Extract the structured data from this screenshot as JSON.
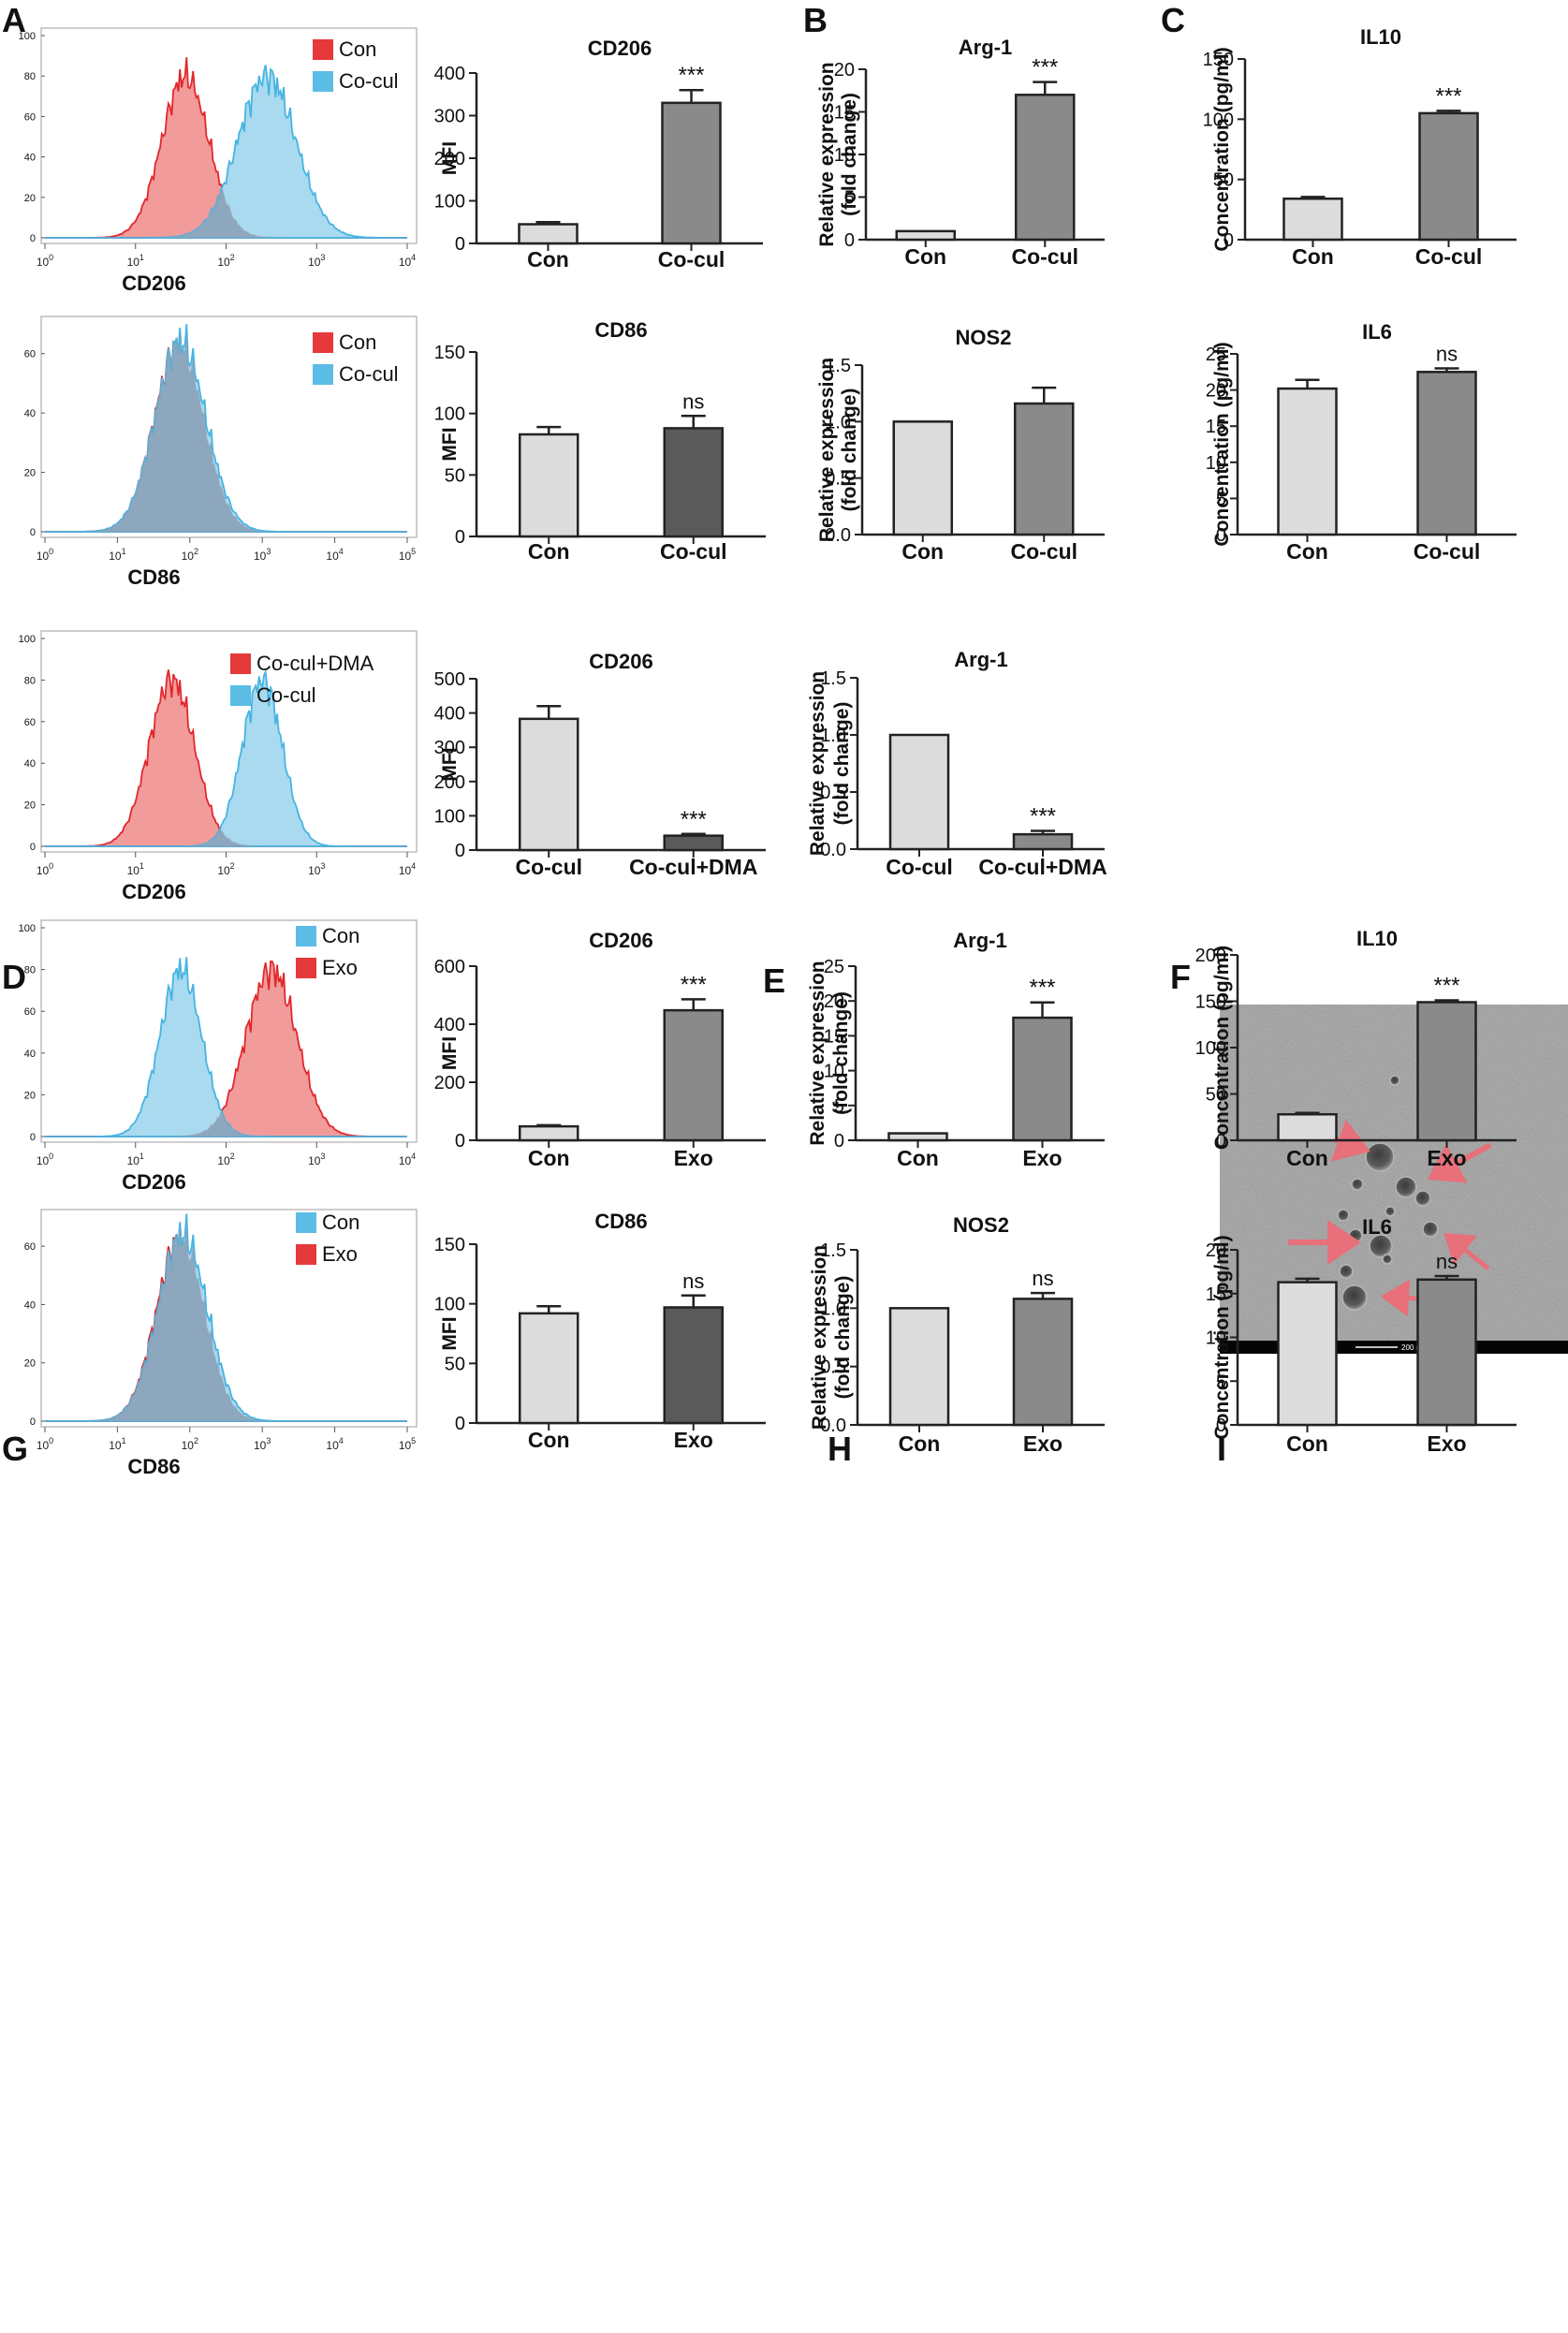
{
  "figure": {
    "panel_labels": [
      "A",
      "B",
      "C",
      "D",
      "E",
      "F",
      "G",
      "H",
      "I"
    ],
    "tem_scale_label": "200 nm",
    "colors": {
      "red_fill": "#F08A8A",
      "red_line": "#E0282C",
      "red_legend": "#E5393B",
      "blue_fill": "#9AD4EC",
      "blue_line": "#46B4E2",
      "blue_legend": "#5BBDE6",
      "overlap": "#8AA3BA",
      "bar_light": "#DCDCDC",
      "bar_mid": "#8A8A8A",
      "bar_dark": "#5A5A5A",
      "arrow": "#E8707A",
      "axis": "#222222"
    }
  },
  "chart_data": [
    {
      "id": "A_hist_cd206",
      "panel": "A",
      "type": "histogram",
      "xlabel": "CD206",
      "xscale": "log",
      "xrange": [
        1,
        10000
      ],
      "x_tick_labels": [
        "10^0",
        "10^1",
        "10^2",
        "10^3",
        "10^4"
      ],
      "ylim": [
        0,
        100
      ],
      "y_tick_labels": [
        "0",
        "20",
        "40",
        "60",
        "80",
        "100"
      ],
      "legend": [
        "Con",
        "Co-cul"
      ],
      "series": [
        {
          "name": "Con",
          "color": "red",
          "peak_log10": 1.55,
          "spread": 0.26,
          "height": 80,
          "smooth": 0.6
        },
        {
          "name": "Co-cul",
          "color": "blue",
          "peak_log10": 2.45,
          "spread": 0.32,
          "height": 80,
          "smooth": 0.5
        }
      ]
    },
    {
      "id": "A_bar_cd206",
      "panel": "A",
      "type": "bar",
      "title": "CD206",
      "ylabel": "MFI",
      "ylim": [
        0,
        400
      ],
      "yticks": [
        0,
        100,
        200,
        300,
        400
      ],
      "categories": [
        "Con",
        "Co-cul"
      ],
      "values": [
        45,
        330
      ],
      "errors": [
        5,
        30
      ],
      "annotations": [
        "",
        "***"
      ],
      "bar_colors": [
        "light",
        "mid"
      ]
    },
    {
      "id": "B_bar_arg1",
      "panel": "B",
      "type": "bar",
      "title": "Arg-1",
      "ylabel": "Relative expression (fold change)",
      "ylim": [
        0,
        20
      ],
      "yticks": [
        0,
        5,
        10,
        15,
        20
      ],
      "categories": [
        "Con",
        "Co-cul"
      ],
      "values": [
        1,
        17
      ],
      "errors": [
        0,
        1.5
      ],
      "annotations": [
        "",
        "***"
      ],
      "bar_colors": [
        "light",
        "mid"
      ]
    },
    {
      "id": "C_bar_il10",
      "panel": "C",
      "type": "bar",
      "title": "IL10",
      "ylabel": "Concentration (pg/ml)",
      "ylim": [
        0,
        150
      ],
      "yticks": [
        0,
        50,
        100,
        150
      ],
      "categories": [
        "Con",
        "Co-cul"
      ],
      "values": [
        34,
        105
      ],
      "errors": [
        1.5,
        2
      ],
      "annotations": [
        "",
        "***"
      ],
      "bar_colors": [
        "light",
        "mid"
      ]
    },
    {
      "id": "A_hist_cd86",
      "panel": "A2",
      "type": "histogram",
      "xlabel": "CD86",
      "xscale": "log",
      "xrange": [
        1,
        100000
      ],
      "x_tick_labels": [
        "10^0",
        "10^1",
        "10^2",
        "10^3",
        "10^4",
        "10^5"
      ],
      "ylim": [
        0,
        70
      ],
      "y_tick_labels": [
        "0",
        "20",
        "40",
        "60"
      ],
      "legend": [
        "Con",
        "Co-cul"
      ],
      "series": [
        {
          "name": "Con",
          "color": "red",
          "peak_log10": 1.85,
          "spread": 0.34,
          "height": 63,
          "smooth": 0.5
        },
        {
          "name": "Co-cul",
          "color": "blue",
          "peak_log10": 1.87,
          "spread": 0.35,
          "height": 64,
          "smooth": 0.5
        }
      ]
    },
    {
      "id": "A_bar_cd86",
      "panel": "A2",
      "type": "bar",
      "title": "CD86",
      "ylabel": "MFI",
      "ylim": [
        0,
        150
      ],
      "yticks": [
        0,
        50,
        100,
        150
      ],
      "categories": [
        "Con",
        "Co-cul"
      ],
      "values": [
        83,
        88
      ],
      "errors": [
        6,
        10
      ],
      "annotations": [
        "",
        "ns"
      ],
      "bar_colors": [
        "light",
        "dark"
      ]
    },
    {
      "id": "B_bar_nos2",
      "panel": "B2",
      "type": "bar",
      "title": "NOS2",
      "ylabel": "Relative expression (fold change)",
      "ylim": [
        0,
        1.5
      ],
      "yticks": [
        0,
        0.5,
        1.0,
        1.5
      ],
      "tick_decimals": 1,
      "categories": [
        "Con",
        "Co-cul"
      ],
      "values": [
        1.0,
        1.16
      ],
      "errors": [
        0,
        0.14
      ],
      "annotations": [
        "",
        ""
      ],
      "bar_colors": [
        "light",
        "mid"
      ]
    },
    {
      "id": "C_bar_il6",
      "panel": "C2",
      "type": "bar",
      "title": "IL6",
      "ylabel": "Concentration (pg/ml)",
      "ylim": [
        0,
        25
      ],
      "yticks": [
        0,
        5,
        10,
        15,
        20,
        25
      ],
      "categories": [
        "Con",
        "Co-cul"
      ],
      "values": [
        20.2,
        22.5
      ],
      "errors": [
        1.2,
        0.5
      ],
      "annotations": [
        "",
        "ns"
      ],
      "bar_colors": [
        "light",
        "mid"
      ]
    },
    {
      "id": "D_hist_cd206",
      "panel": "D",
      "type": "histogram",
      "xlabel": "CD206",
      "xscale": "log",
      "xrange": [
        1,
        10000
      ],
      "x_tick_labels": [
        "10^0",
        "10^1",
        "10^2",
        "10^3",
        "10^4"
      ],
      "ylim": [
        0,
        100
      ],
      "y_tick_labels": [
        "0",
        "20",
        "40",
        "60",
        "80",
        "100"
      ],
      "legend": [
        "Co-cul+DMA",
        "Co-cul"
      ],
      "series": [
        {
          "name": "Co-cul+DMA",
          "color": "red",
          "peak_log10": 1.4,
          "spread": 0.25,
          "height": 80,
          "smooth": 0.6
        },
        {
          "name": "Co-cul",
          "color": "blue",
          "peak_log10": 2.4,
          "spread": 0.22,
          "height": 80,
          "smooth": 0.6
        }
      ]
    },
    {
      "id": "D_bar_cd206",
      "panel": "D",
      "type": "bar",
      "title": "CD206",
      "ylabel": "MFI",
      "ylim": [
        0,
        500
      ],
      "yticks": [
        0,
        100,
        200,
        300,
        400,
        500
      ],
      "categories": [
        "Co-cul",
        "Co-cul+DMA"
      ],
      "values": [
        383,
        42
      ],
      "errors": [
        37,
        5
      ],
      "annotations": [
        "",
        "***"
      ],
      "bar_colors": [
        "light",
        "dark"
      ]
    },
    {
      "id": "E_bar_arg1",
      "panel": "E",
      "type": "bar",
      "title": "Arg-1",
      "ylabel": "Relative expression (fold change)",
      "ylim": [
        0,
        1.5
      ],
      "yticks": [
        0,
        0.5,
        1.0,
        1.5
      ],
      "tick_decimals": 1,
      "categories": [
        "Co-cul",
        "Co-cul+DMA"
      ],
      "values": [
        1.0,
        0.13
      ],
      "errors": [
        0,
        0.03
      ],
      "annotations": [
        "",
        "***"
      ],
      "bar_colors": [
        "light",
        "mid"
      ]
    },
    {
      "id": "G_hist_cd206",
      "panel": "G",
      "type": "histogram",
      "xlabel": "CD206",
      "xscale": "log",
      "xrange": [
        1,
        10000
      ],
      "x_tick_labels": [
        "10^0",
        "10^1",
        "10^2",
        "10^3",
        "10^4"
      ],
      "ylim": [
        0,
        100
      ],
      "y_tick_labels": [
        "0",
        "20",
        "40",
        "60",
        "80",
        "100"
      ],
      "legend": [
        "Con",
        "Exo"
      ],
      "series": [
        {
          "name": "Exo",
          "color": "red",
          "peak_log10": 2.5,
          "spread": 0.28,
          "height": 80,
          "smooth": 0.5
        },
        {
          "name": "Con",
          "color": "blue",
          "peak_log10": 1.5,
          "spread": 0.23,
          "height": 80,
          "smooth": 0.6
        }
      ]
    },
    {
      "id": "G_bar_cd206",
      "panel": "G",
      "type": "bar",
      "title": "CD206",
      "ylabel": "MFI",
      "ylim": [
        0,
        600
      ],
      "yticks": [
        0,
        200,
        400,
        600
      ],
      "categories": [
        "Con",
        "Exo"
      ],
      "values": [
        48,
        448
      ],
      "errors": [
        4,
        38
      ],
      "annotations": [
        "",
        "***"
      ],
      "bar_colors": [
        "light",
        "mid"
      ]
    },
    {
      "id": "H_bar_arg1",
      "panel": "H",
      "type": "bar",
      "title": "Arg-1",
      "ylabel": "Relative expression (fold change)",
      "ylim": [
        0,
        25
      ],
      "yticks": [
        0,
        5,
        10,
        15,
        20,
        25
      ],
      "categories": [
        "Con",
        "Exo"
      ],
      "values": [
        1,
        17.6
      ],
      "errors": [
        0,
        2.2
      ],
      "annotations": [
        "",
        "***"
      ],
      "bar_colors": [
        "light",
        "mid"
      ]
    },
    {
      "id": "I_bar_il10",
      "panel": "I",
      "type": "bar",
      "title": "IL10",
      "ylabel": "Concentration (pg/ml)",
      "ylim": [
        0,
        200
      ],
      "yticks": [
        0,
        50,
        100,
        150,
        200
      ],
      "categories": [
        "Con",
        "Exo"
      ],
      "values": [
        28,
        149
      ],
      "errors": [
        1.5,
        2
      ],
      "annotations": [
        "",
        "***"
      ],
      "bar_colors": [
        "light",
        "mid"
      ]
    },
    {
      "id": "G_hist_cd86",
      "panel": "G2",
      "type": "histogram",
      "xlabel": "CD86",
      "xscale": "log",
      "xrange": [
        1,
        100000
      ],
      "x_tick_labels": [
        "10^0",
        "10^1",
        "10^2",
        "10^3",
        "10^4",
        "10^5"
      ],
      "ylim": [
        0,
        70
      ],
      "y_tick_labels": [
        "0",
        "20",
        "40",
        "60"
      ],
      "legend": [
        "Con",
        "Exo"
      ],
      "series": [
        {
          "name": "Exo",
          "color": "red",
          "peak_log10": 1.87,
          "spread": 0.33,
          "height": 63,
          "smooth": 0.5
        },
        {
          "name": "Con",
          "color": "blue",
          "peak_log10": 1.9,
          "spread": 0.34,
          "height": 64,
          "smooth": 0.5
        }
      ]
    },
    {
      "id": "G_bar_cd86",
      "panel": "G2",
      "type": "bar",
      "title": "CD86",
      "ylabel": "MFI",
      "ylim": [
        0,
        150
      ],
      "yticks": [
        0,
        50,
        100,
        150
      ],
      "categories": [
        "Con",
        "Exo"
      ],
      "values": [
        92,
        97
      ],
      "errors": [
        6,
        10
      ],
      "annotations": [
        "",
        "ns"
      ],
      "bar_colors": [
        "light",
        "dark"
      ]
    },
    {
      "id": "H_bar_nos2",
      "panel": "H2",
      "type": "bar",
      "title": "NOS2",
      "ylabel": "Relative expression (fold change)",
      "ylim": [
        0,
        1.5
      ],
      "yticks": [
        0,
        0.5,
        1.0,
        1.5
      ],
      "tick_decimals": 1,
      "categories": [
        "Con",
        "Exo"
      ],
      "values": [
        1.0,
        1.08
      ],
      "errors": [
        0,
        0.05
      ],
      "annotations": [
        "",
        "ns"
      ],
      "bar_colors": [
        "light",
        "mid"
      ]
    },
    {
      "id": "I_bar_il6",
      "panel": "I2",
      "type": "bar",
      "title": "IL6",
      "ylabel": "Concentration (pg/ml)",
      "ylim": [
        0,
        20
      ],
      "yticks": [
        0,
        5,
        10,
        15,
        20
      ],
      "categories": [
        "Con",
        "Exo"
      ],
      "values": [
        16.3,
        16.6
      ],
      "errors": [
        0.4,
        0.4
      ],
      "annotations": [
        "",
        "ns"
      ],
      "bar_colors": [
        "light",
        "mid"
      ]
    }
  ]
}
